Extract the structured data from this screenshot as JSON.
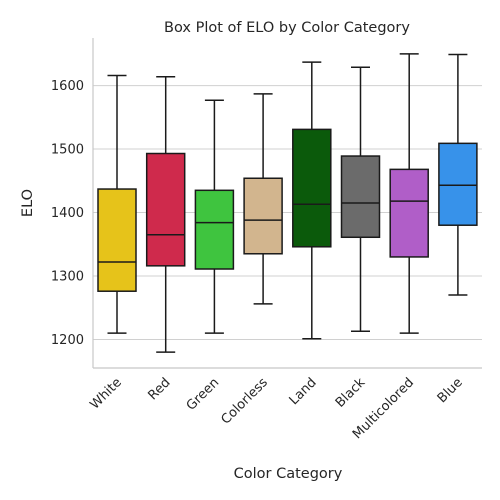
{
  "chart_data": {
    "type": "box",
    "title": "Box Plot of ELO by Color Category",
    "xlabel": "Color Category",
    "ylabel": "ELO",
    "ylim": [
      1155,
      1675
    ],
    "yticks": [
      1200,
      1300,
      1400,
      1500,
      1600
    ],
    "grid": "horizontal",
    "categories": [
      "White",
      "Red",
      "Green",
      "Colorless",
      "Land",
      "Black",
      "Multicolored",
      "Blue"
    ],
    "boxes": [
      {
        "category": "White",
        "color": "#e6c31a",
        "min": 1210,
        "q1": 1276,
        "median": 1322,
        "q3": 1437,
        "max": 1616
      },
      {
        "category": "Red",
        "color": "#cf2a4c",
        "min": 1180,
        "q1": 1316,
        "median": 1365,
        "q3": 1493,
        "max": 1614
      },
      {
        "category": "Green",
        "color": "#3fc43f",
        "min": 1210,
        "q1": 1311,
        "median": 1384,
        "q3": 1435,
        "max": 1577
      },
      {
        "category": "Colorless",
        "color": "#d2b58e",
        "min": 1256,
        "q1": 1335,
        "median": 1388,
        "q3": 1454,
        "max": 1587
      },
      {
        "category": "Land",
        "color": "#0b5a0b",
        "min": 1201,
        "q1": 1346,
        "median": 1413,
        "q3": 1531,
        "max": 1637
      },
      {
        "category": "Black",
        "color": "#6b6b6b",
        "min": 1213,
        "q1": 1361,
        "median": 1415,
        "q3": 1489,
        "max": 1629
      },
      {
        "category": "Multicolored",
        "color": "#b05ec8",
        "min": 1210,
        "q1": 1330,
        "median": 1418,
        "q3": 1468,
        "max": 1650
      },
      {
        "category": "Blue",
        "color": "#3792ea",
        "min": 1270,
        "q1": 1380,
        "median": 1443,
        "q3": 1509,
        "max": 1649
      }
    ]
  }
}
